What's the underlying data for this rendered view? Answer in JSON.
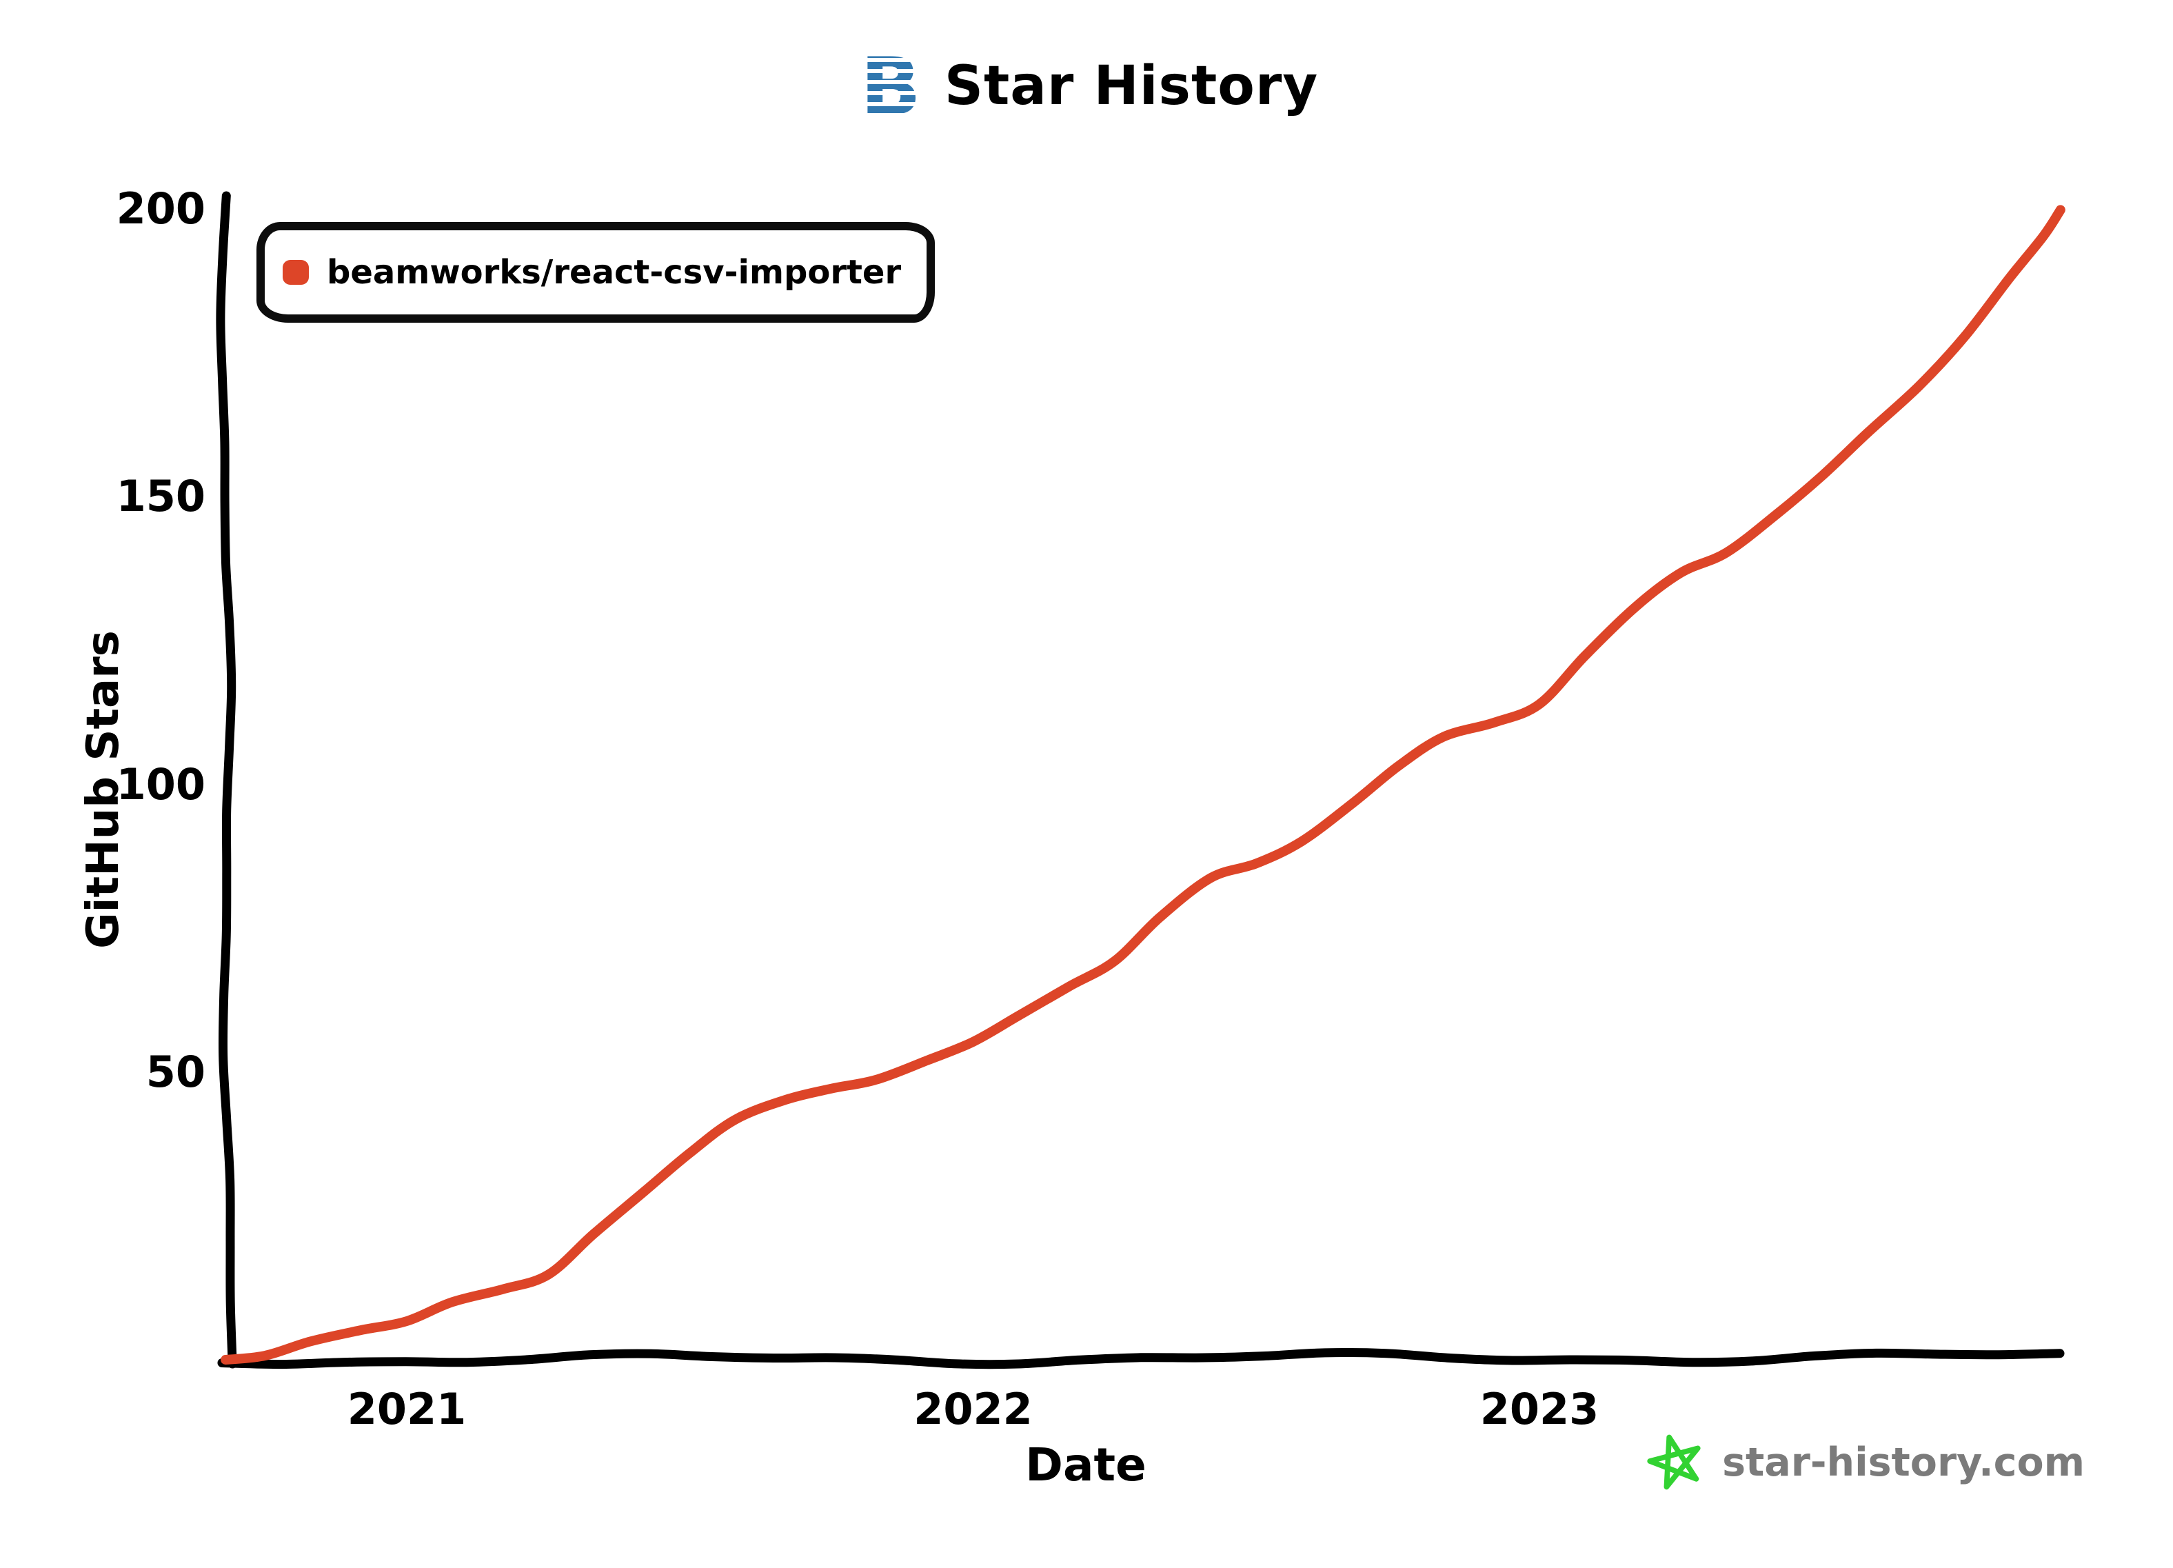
{
  "header": {
    "title": "Star History"
  },
  "legend": {
    "series_label": "beamworks/react-csv-importer",
    "marker_color": "#dd4528"
  },
  "axes": {
    "y_title": "GitHub Stars",
    "x_title": "Date",
    "y_ticks": [
      "50",
      "100",
      "150",
      "200"
    ],
    "x_ticks": [
      "2021",
      "2022",
      "2023"
    ]
  },
  "footer": {
    "watermark": "star-history.com",
    "star_color": "#32d232",
    "text_color": "#7b7b7b"
  },
  "colors": {
    "line": "#dd4528",
    "axis": "#000000",
    "logo_blue": "#3077af"
  },
  "chart_data": {
    "type": "line",
    "title": "Star History",
    "xlabel": "Date",
    "ylabel": "GitHub Stars",
    "ylim": [
      0,
      200
    ],
    "grid": false,
    "legend_position": "top-left",
    "x_axis": {
      "unit": "decimal_year",
      "ticks": [
        2021,
        2022,
        2023
      ],
      "range": [
        2020.68,
        2023.92
      ]
    },
    "y_axis": {
      "ticks": [
        50,
        100,
        150,
        200
      ]
    },
    "series": [
      {
        "name": "beamworks/react-csv-importer",
        "color": "#dd4528",
        "x": [
          2020.68,
          2020.75,
          2020.83,
          2020.92,
          2021.0,
          2021.08,
          2021.17,
          2021.25,
          2021.33,
          2021.42,
          2021.5,
          2021.58,
          2021.67,
          2021.75,
          2021.83,
          2021.92,
          2022.0,
          2022.08,
          2022.17,
          2022.25,
          2022.33,
          2022.42,
          2022.5,
          2022.58,
          2022.67,
          2022.75,
          2022.83,
          2022.92,
          2023.0,
          2023.08,
          2023.17,
          2023.25,
          2023.33,
          2023.42,
          2023.5,
          2023.58,
          2023.67,
          2023.75,
          2023.83,
          2023.89,
          2023.92
        ],
        "y": [
          0,
          1,
          3,
          5,
          7,
          10,
          12,
          15,
          22,
          29,
          36,
          42,
          45,
          47,
          49,
          52,
          55,
          60,
          65,
          69,
          77,
          84,
          86,
          90,
          97,
          103,
          108,
          111,
          114,
          122,
          131,
          137,
          140,
          147,
          154,
          161,
          169,
          178,
          188,
          195,
          200
        ]
      }
    ]
  }
}
